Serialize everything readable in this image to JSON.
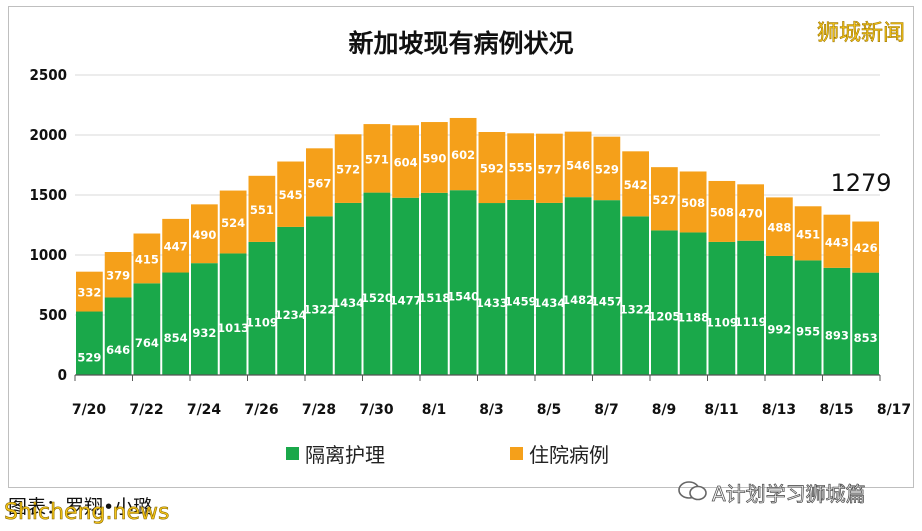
{
  "brand": "狮城新闻",
  "caption": "图表：罗翔•小璐",
  "watermarks": {
    "left": "Shicheng.news",
    "right": "A计划学习狮城篇"
  },
  "callout": "1279",
  "colors": {
    "hospital": "#f5a01a",
    "care": "#1aa84a"
  },
  "chart_data": {
    "type": "bar",
    "stacked": true,
    "title": "新加坡现有病例状况",
    "categories": [
      "7/20",
      "7/21",
      "7/22",
      "7/23",
      "7/24",
      "7/25",
      "7/26",
      "7/27",
      "7/28",
      "7/29",
      "7/30",
      "7/31",
      "8/1",
      "8/2",
      "8/3",
      "8/4",
      "8/5",
      "8/6",
      "8/7",
      "8/8",
      "8/9",
      "8/10",
      "8/11",
      "8/12",
      "8/13",
      "8/14",
      "8/15",
      "8/16"
    ],
    "x_tick_labels": [
      "7/20",
      "7/22",
      "7/24",
      "7/26",
      "7/28",
      "7/30",
      "8/1",
      "8/3",
      "8/5",
      "8/7",
      "8/9",
      "8/11",
      "8/13",
      "8/15",
      "8/17"
    ],
    "series": [
      {
        "name": "隔离护理",
        "color": "#1aa84a",
        "values": [
          529,
          646,
          764,
          854,
          932,
          1013,
          1109,
          1234,
          1322,
          1434,
          1520,
          1477,
          1518,
          1540,
          1433,
          1459,
          1434,
          1482,
          1457,
          1322,
          1205,
          1188,
          1109,
          1119,
          992,
          955,
          893,
          853
        ]
      },
      {
        "name": "住院病例",
        "color": "#f5a01a",
        "values": [
          332,
          379,
          415,
          447,
          490,
          524,
          551,
          545,
          567,
          572,
          571,
          604,
          590,
          602,
          592,
          555,
          577,
          546,
          529,
          542,
          527,
          508,
          508,
          470,
          488,
          451,
          443,
          426
        ]
      }
    ],
    "ylim": [
      0,
      2500
    ],
    "yticks": [
      0,
      500,
      1000,
      1500,
      2000,
      2500
    ],
    "grid": true,
    "legend_position": "bottom",
    "xlabel": "",
    "ylabel": ""
  }
}
